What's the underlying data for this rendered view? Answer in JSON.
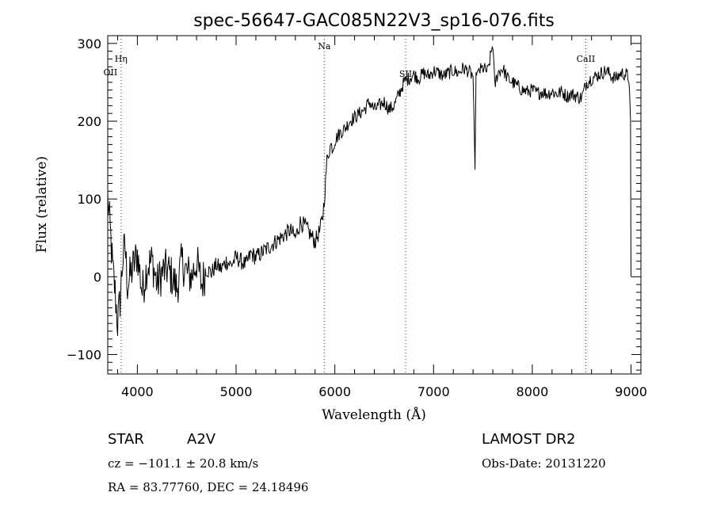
{
  "chart_data": {
    "type": "line",
    "title": "spec-56647-GAC085N22V3_sp16-076.fits",
    "xlabel": "Wavelength (Å)",
    "ylabel": "Flux (relative)",
    "xlim": [
      3700,
      9100
    ],
    "ylim": [
      -125,
      310
    ],
    "x_ticks": [
      4000,
      5000,
      6000,
      7000,
      8000,
      9000
    ],
    "y_ticks": [
      -100,
      0,
      100,
      200,
      300
    ],
    "x_tick_labels": [
      "4000",
      "5000",
      "6000",
      "7000",
      "8000",
      "9000"
    ],
    "y_tick_labels": [
      "−100",
      "0",
      "100",
      "200",
      "300"
    ],
    "grid": false,
    "series": [
      {
        "color": "#000000",
        "x": [
          3700,
          3725,
          3750,
          3775,
          3800,
          3825,
          3850,
          3875,
          3900,
          3950,
          4000,
          4050,
          4100,
          4150,
          4200,
          4250,
          4300,
          4350,
          4400,
          4450,
          4500,
          4550,
          4600,
          4650,
          4700,
          4750,
          4800,
          4850,
          4900,
          4950,
          5000,
          5050,
          5100,
          5150,
          5200,
          5250,
          5300,
          5350,
          5400,
          5450,
          5500,
          5550,
          5600,
          5650,
          5700,
          5750,
          5800,
          5850,
          5880,
          5900,
          5920,
          5940,
          5960,
          5980,
          6000,
          6050,
          6100,
          6150,
          6200,
          6250,
          6300,
          6350,
          6400,
          6450,
          6500,
          6550,
          6600,
          6650,
          6700,
          6750,
          6800,
          6850,
          6900,
          6950,
          7000,
          7050,
          7100,
          7150,
          7200,
          7250,
          7300,
          7350,
          7400,
          7420,
          7430,
          7440,
          7460,
          7500,
          7550,
          7600,
          7620,
          7650,
          7700,
          7750,
          7800,
          7850,
          7900,
          7950,
          8000,
          8050,
          8100,
          8150,
          8200,
          8250,
          8300,
          8350,
          8400,
          8450,
          8500,
          8550,
          8600,
          8650,
          8700,
          8750,
          8800,
          8850,
          8900,
          8950,
          8980,
          8995,
          9000
        ],
        "y": [
          100,
          60,
          10,
          -20,
          -60,
          -30,
          20,
          40,
          -10,
          10,
          30,
          -20,
          15,
          20,
          -10,
          5,
          10,
          0,
          -15,
          20,
          5,
          0,
          20,
          -10,
          10,
          5,
          15,
          10,
          20,
          15,
          25,
          20,
          15,
          30,
          25,
          30,
          35,
          40,
          45,
          50,
          55,
          60,
          50,
          70,
          65,
          55,
          45,
          60,
          80,
          110,
          150,
          160,
          170,
          165,
          175,
          185,
          190,
          200,
          205,
          210,
          215,
          225,
          215,
          220,
          225,
          215,
          220,
          235,
          250,
          255,
          260,
          255,
          262,
          258,
          265,
          262,
          258,
          262,
          265,
          262,
          268,
          265,
          258,
          135,
          260,
          262,
          265,
          268,
          264,
          300,
          245,
          262,
          268,
          255,
          250,
          245,
          240,
          238,
          240,
          236,
          238,
          235,
          238,
          235,
          238,
          232,
          235,
          232,
          230,
          250,
          255,
          258,
          262,
          265,
          258,
          255,
          262,
          260,
          255,
          200,
          0
        ]
      }
    ],
    "annotations": [
      {
        "label": "OII",
        "x": 3727,
        "line": false
      },
      {
        "label": "Hη",
        "x": 3835,
        "line": true
      },
      {
        "label": "Na",
        "x": 5893,
        "line": true
      },
      {
        "label": "SII",
        "x": 6717,
        "line": true
      },
      {
        "label": "CaII",
        "x": 8542,
        "line": true
      }
    ]
  },
  "info": {
    "object_class": "STAR",
    "subclass": "A2V",
    "survey": "LAMOST DR2",
    "cz": "cz = −101.1 ± 20.8 km/s",
    "obs_date": "Obs-Date: 20131220",
    "radec": "RA =  83.77760, DEC =  24.18496"
  }
}
